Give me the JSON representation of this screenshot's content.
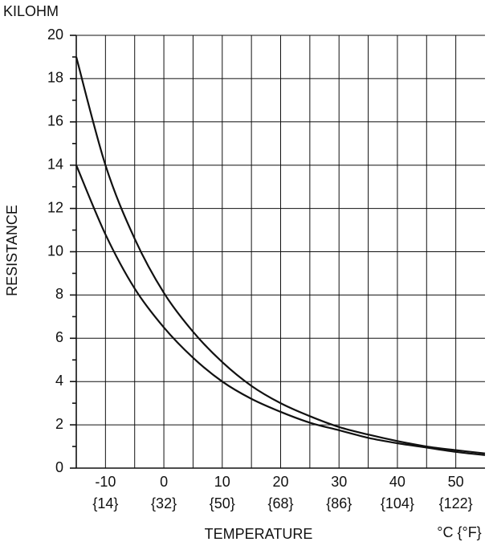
{
  "chart_data": {
    "type": "line",
    "y_unit_label": "KILOHM",
    "ylabel": "RESISTANCE",
    "xlabel": "TEMPERATURE",
    "x_unit_label": "°C {°F}",
    "x": [
      -15,
      -10,
      -5,
      0,
      5,
      10,
      15,
      20,
      25,
      30,
      35,
      40,
      45,
      50,
      55
    ],
    "series": [
      {
        "color": "#111111",
        "values": [
          19,
          14,
          10.6,
          8.1,
          6.3,
          4.9,
          3.8,
          3.0,
          2.4,
          1.9,
          1.55,
          1.25,
          1.0,
          0.83,
          0.68
        ]
      },
      {
        "color": "#111111",
        "values": [
          14,
          10.8,
          8.3,
          6.5,
          5.1,
          4.0,
          3.2,
          2.6,
          2.1,
          1.75,
          1.4,
          1.15,
          0.95,
          0.75,
          0.6
        ]
      }
    ],
    "xlim": [
      -15,
      55
    ],
    "ylim": [
      0,
      20
    ],
    "xticks": [
      -10,
      0,
      10,
      20,
      30,
      40,
      50
    ],
    "xtick_secondary_labels": [
      "{14}",
      "{32}",
      "{50}",
      "{68}",
      "{86}",
      "{104}",
      "{122}"
    ],
    "x_minor_grid": [
      -5,
      5,
      15,
      25,
      35,
      45
    ],
    "yticks": [
      0,
      2,
      4,
      6,
      8,
      10,
      12,
      14,
      16,
      18,
      20
    ],
    "y_minor_ticks": [
      1,
      3,
      5,
      7,
      9,
      11,
      13,
      15,
      17,
      19
    ],
    "grid": true
  }
}
